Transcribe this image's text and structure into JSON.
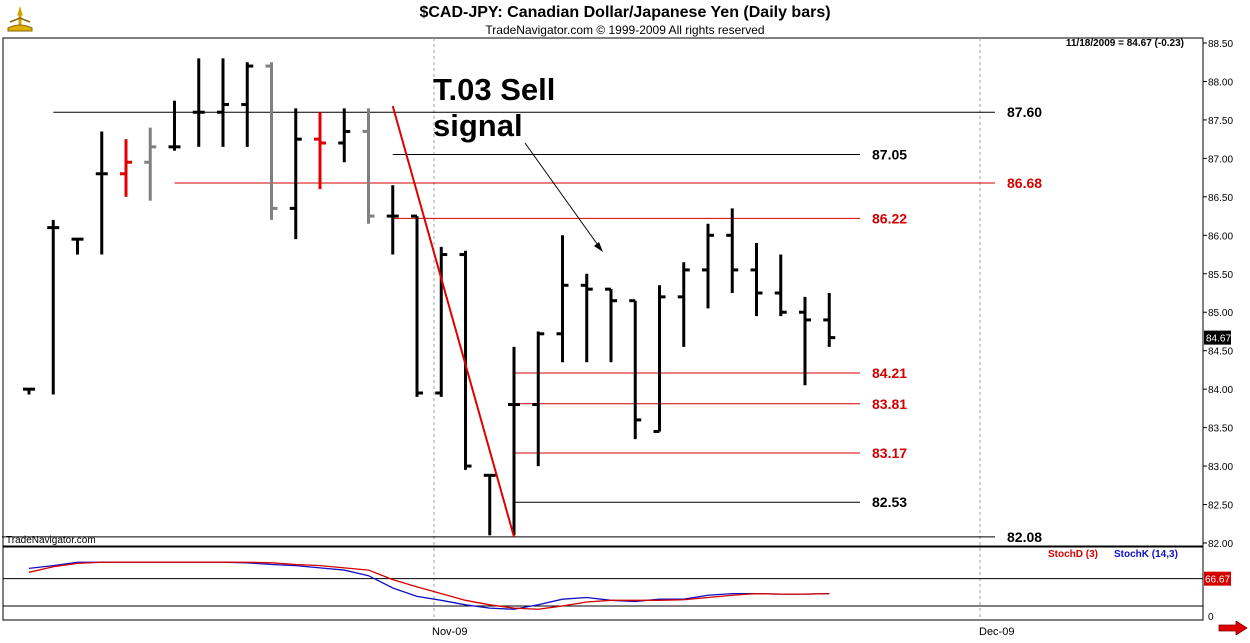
{
  "title": "$CAD-JPY:  Canadian Dollar/Japanese Yen  (Daily bars)",
  "subtitle": "TradeNavigator.com © 1999-2009 All rights reserved",
  "last_bar_info": "11/18/2009 = 84.67 (-0.23)",
  "watermark": "TradeNavigator.com",
  "annotation": {
    "line1": "T.03 Sell",
    "line2": "signal"
  },
  "price_tag": "84.67",
  "stoch_tag": "66.67",
  "legend": {
    "stoch_d": "StochD (3)",
    "stoch_k": "StochK (14,3)"
  },
  "colors": {
    "up_down_bar": "#000000",
    "red_bar": "#e00000",
    "gray_bar": "#808080",
    "stoch_d": "#d40000",
    "stoch_k": "#1010c0",
    "level_red": "#d40000"
  },
  "chart_data": {
    "type": "ohlc",
    "title": "$CAD-JPY:  Canadian Dollar/Japanese Yen  (Daily bars)",
    "x_ticks": [
      "Nov-09",
      "Dec-09"
    ],
    "y_ticks": [
      "88.50",
      "88.00",
      "87.50",
      "87.00",
      "86.50",
      "86.00",
      "85.50",
      "85.00",
      "84.50",
      "84.00",
      "83.50",
      "83.00",
      "82.50",
      "82.00"
    ],
    "ylim": [
      82.0,
      88.5
    ],
    "bars": [
      {
        "o": 84.0,
        "h": 84.0,
        "l": 83.93,
        "c": 84.0,
        "color": "black"
      },
      {
        "o": 86.1,
        "h": 86.2,
        "l": 83.93,
        "c": 86.1,
        "color": "black"
      },
      {
        "o": 85.95,
        "h": 85.95,
        "l": 85.75,
        "c": 85.95,
        "color": "black"
      },
      {
        "o": 86.8,
        "h": 87.35,
        "l": 85.75,
        "c": 86.8,
        "color": "black"
      },
      {
        "o": 86.8,
        "h": 87.25,
        "l": 86.5,
        "c": 86.95,
        "color": "red"
      },
      {
        "o": 86.95,
        "h": 87.4,
        "l": 86.45,
        "c": 87.15,
        "color": "gray"
      },
      {
        "o": 87.15,
        "h": 87.75,
        "l": 87.1,
        "c": 87.15,
        "color": "black"
      },
      {
        "o": 87.6,
        "h": 88.3,
        "l": 87.15,
        "c": 87.6,
        "color": "black"
      },
      {
        "o": 87.6,
        "h": 88.3,
        "l": 87.15,
        "c": 87.7,
        "color": "black"
      },
      {
        "o": 87.7,
        "h": 88.25,
        "l": 87.15,
        "c": 88.2,
        "color": "black"
      },
      {
        "o": 88.2,
        "h": 88.25,
        "l": 86.2,
        "c": 86.35,
        "color": "gray"
      },
      {
        "o": 86.35,
        "h": 87.65,
        "l": 85.95,
        "c": 87.25,
        "color": "black"
      },
      {
        "o": 87.25,
        "h": 87.6,
        "l": 86.6,
        "c": 87.2,
        "color": "red"
      },
      {
        "o": 87.2,
        "h": 87.65,
        "l": 86.95,
        "c": 87.35,
        "color": "black"
      },
      {
        "o": 87.35,
        "h": 87.65,
        "l": 86.15,
        "c": 86.25,
        "color": "gray"
      },
      {
        "o": 86.25,
        "h": 86.65,
        "l": 85.75,
        "c": 86.25,
        "color": "black"
      },
      {
        "o": 86.25,
        "h": 86.25,
        "l": 83.9,
        "c": 83.95,
        "color": "black"
      },
      {
        "o": 83.95,
        "h": 85.85,
        "l": 83.9,
        "c": 85.75,
        "color": "black"
      },
      {
        "o": 85.75,
        "h": 85.8,
        "l": 82.95,
        "c": 83.0,
        "color": "black"
      },
      {
        "o": 82.88,
        "h": 82.88,
        "l": 82.1,
        "c": 82.88,
        "color": "black"
      },
      {
        "o": 83.8,
        "h": 84.55,
        "l": 82.1,
        "c": 83.8,
        "color": "black"
      },
      {
        "o": 83.8,
        "h": 84.75,
        "l": 83.0,
        "c": 84.72,
        "color": "black"
      },
      {
        "o": 84.72,
        "h": 86.0,
        "l": 84.35,
        "c": 85.35,
        "color": "black"
      },
      {
        "o": 85.35,
        "h": 85.5,
        "l": 84.35,
        "c": 85.3,
        "color": "black"
      },
      {
        "o": 85.3,
        "h": 85.3,
        "l": 84.35,
        "c": 85.15,
        "color": "black"
      },
      {
        "o": 85.15,
        "h": 85.15,
        "l": 83.35,
        "c": 83.6,
        "color": "black"
      },
      {
        "o": 83.45,
        "h": 85.35,
        "l": 83.45,
        "c": 85.2,
        "color": "black"
      },
      {
        "o": 85.2,
        "h": 85.65,
        "l": 84.55,
        "c": 85.55,
        "color": "black"
      },
      {
        "o": 85.55,
        "h": 86.15,
        "l": 85.05,
        "c": 86.0,
        "color": "black"
      },
      {
        "o": 86.0,
        "h": 86.35,
        "l": 85.25,
        "c": 85.55,
        "color": "black"
      },
      {
        "o": 85.55,
        "h": 85.9,
        "l": 84.95,
        "c": 85.25,
        "color": "black"
      },
      {
        "o": 85.25,
        "h": 85.75,
        "l": 84.95,
        "c": 85.0,
        "color": "black"
      },
      {
        "o": 85.0,
        "h": 85.2,
        "l": 84.05,
        "c": 84.9,
        "color": "black"
      },
      {
        "o": 84.9,
        "h": 85.25,
        "l": 84.55,
        "c": 84.67,
        "color": "black"
      }
    ],
    "levels": [
      {
        "value": 87.6,
        "label": "87.60",
        "color": "black",
        "from_bar": 1,
        "to": "right"
      },
      {
        "value": 87.05,
        "label": "87.05",
        "color": "black",
        "from_bar": 15,
        "to": "mid"
      },
      {
        "value": 86.68,
        "label": "86.68",
        "color": "red",
        "from_bar": 6,
        "to": "right"
      },
      {
        "value": 86.22,
        "label": "86.22",
        "color": "red",
        "from_bar": 15,
        "to": "mid"
      },
      {
        "value": 84.21,
        "label": "84.21",
        "color": "red",
        "from_bar": 20,
        "to": "mid"
      },
      {
        "value": 83.81,
        "label": "83.81",
        "color": "red",
        "from_bar": 20,
        "to": "mid"
      },
      {
        "value": 83.17,
        "label": "83.17",
        "color": "red",
        "from_bar": 20,
        "to": "mid"
      },
      {
        "value": 82.53,
        "label": "82.53",
        "color": "black",
        "from_bar": 20,
        "to": "mid"
      },
      {
        "value": 82.08,
        "label": "82.08",
        "color": "black",
        "from_bar": 0,
        "to": "right"
      }
    ],
    "trend_line": {
      "from": [
        15,
        87.68
      ],
      "to": [
        20,
        82.08
      ]
    },
    "stochastic": {
      "y_ticks": [
        "66.67",
        "0"
      ],
      "stoch_k": [
        85,
        90,
        96,
        96,
        96,
        96,
        96,
        96,
        96,
        95,
        92,
        90,
        86,
        82,
        72,
        50,
        35,
        28,
        20,
        14,
        12,
        20,
        30,
        33,
        28,
        26,
        30,
        30,
        37,
        40,
        40,
        39,
        39,
        40
      ],
      "stoch_d": [
        78,
        88,
        94,
        96,
        96,
        96,
        96,
        96,
        96,
        96,
        95,
        92,
        90,
        86,
        82,
        65,
        52,
        40,
        28,
        20,
        14,
        12,
        18,
        25,
        28,
        28,
        28,
        29,
        33,
        37,
        40,
        39,
        39,
        40
      ]
    }
  }
}
